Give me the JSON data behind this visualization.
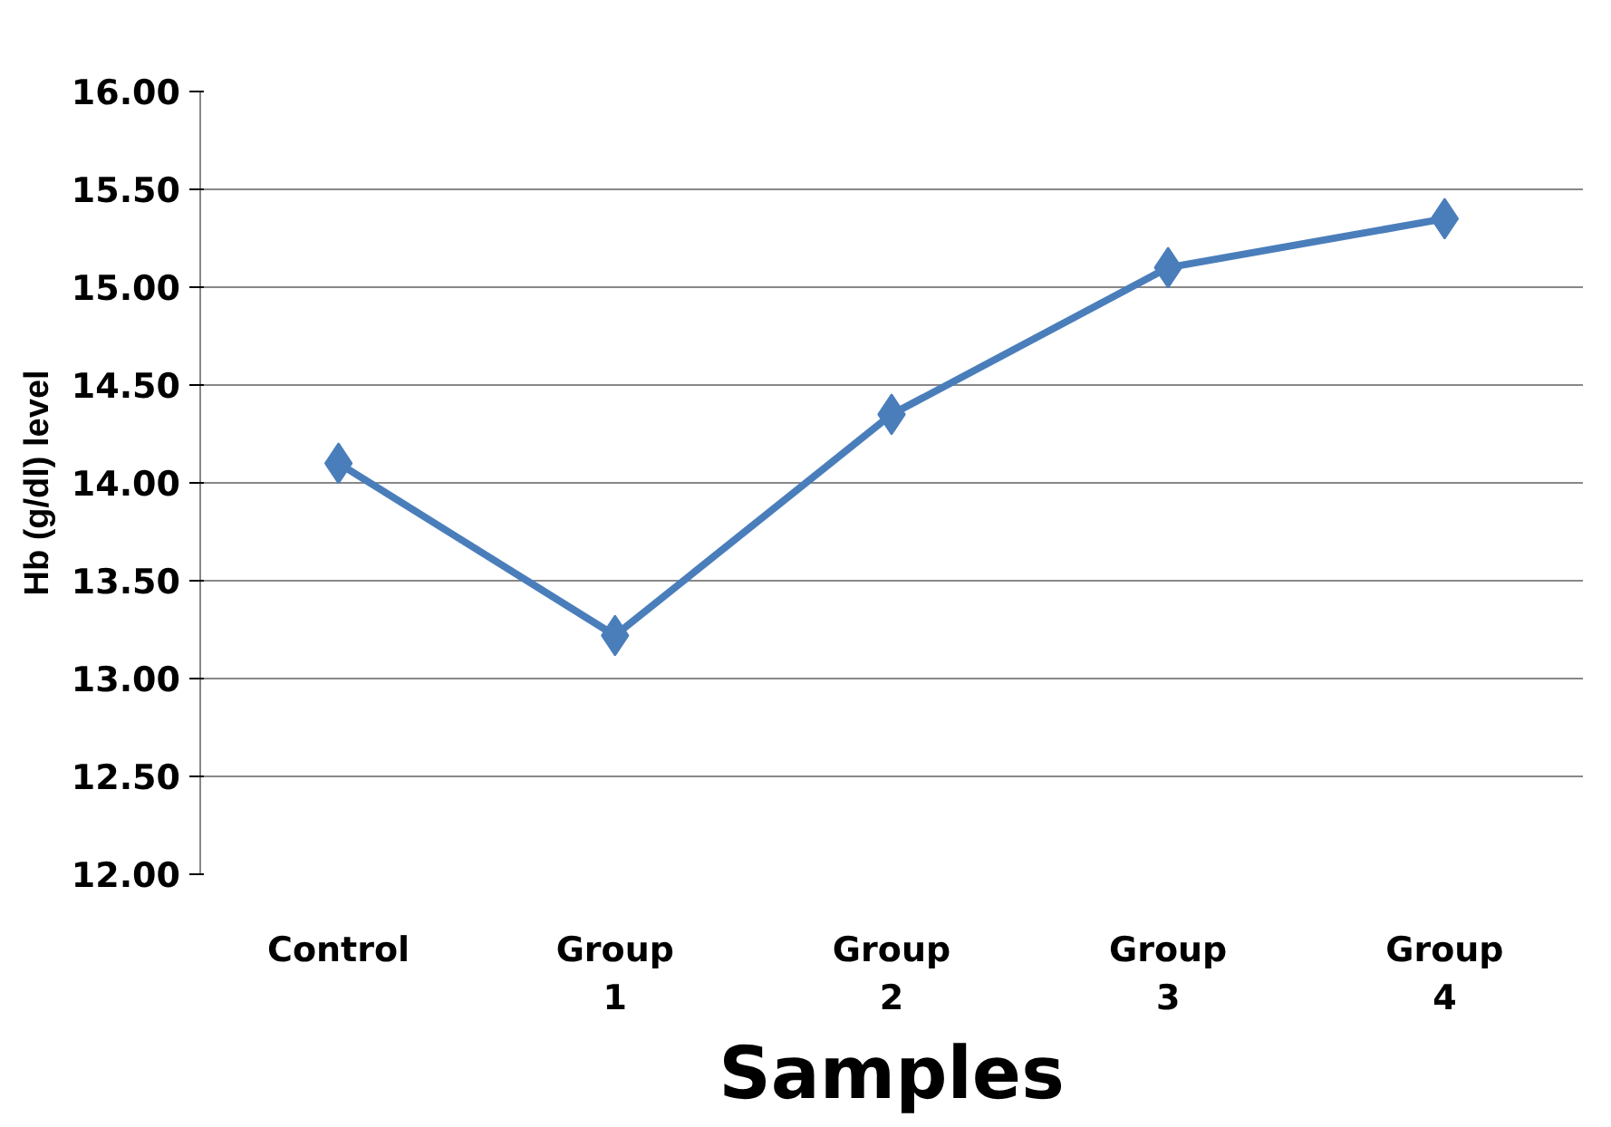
{
  "chart_data": {
    "type": "line",
    "xlabel": "Samples",
    "ylabel": "Hb (g/dl) level",
    "categories": [
      "Control",
      "Group 1",
      "Group 2",
      "Group 3",
      "Group 4"
    ],
    "series": [
      {
        "color": "#4a7ebb",
        "values": [
          14.1,
          13.22,
          14.35,
          15.1,
          15.35
        ]
      }
    ],
    "ylim": [
      12,
      16
    ],
    "yticks": [
      {
        "value": 12,
        "label": "12.00"
      },
      {
        "value": 12.5,
        "label": "12.50"
      },
      {
        "value": 13,
        "label": "13.00"
      },
      {
        "value": 13.5,
        "label": "13.50"
      },
      {
        "value": 14,
        "label": "14.00"
      },
      {
        "value": 14.5,
        "label": "14.50"
      },
      {
        "value": 15,
        "label": "15.00"
      },
      {
        "value": 15.5,
        "label": "15.50"
      },
      {
        "value": 16,
        "label": "16.00"
      }
    ],
    "grid": "y",
    "marker": "diamond",
    "line_style": "solid"
  }
}
